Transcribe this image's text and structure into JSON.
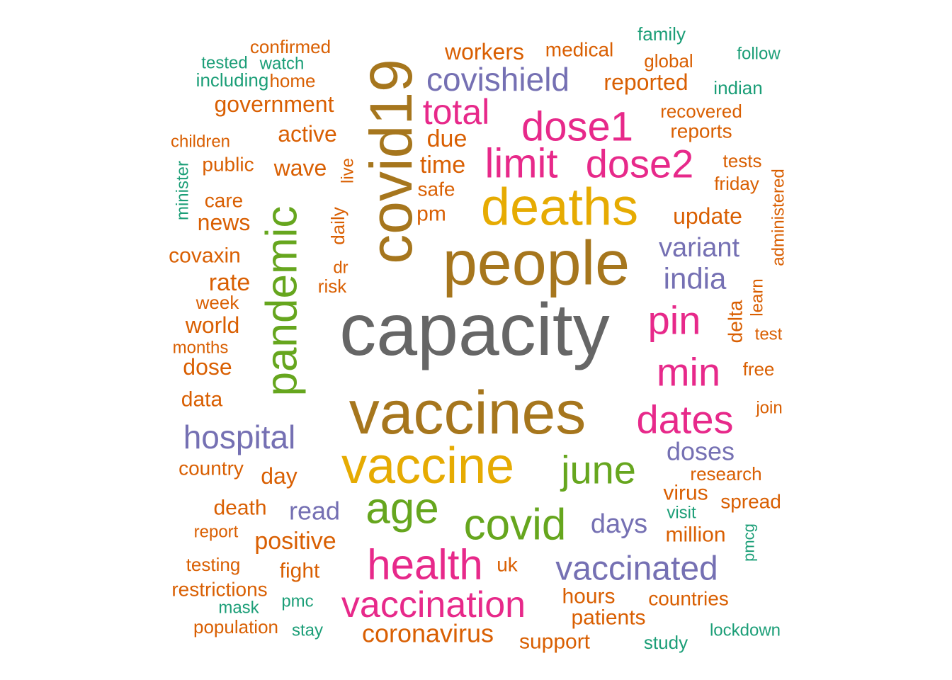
{
  "chart_data": {
    "type": "wordcloud",
    "colors": {
      "gray": "#666666",
      "brown": "#A6761D",
      "gold": "#E6AB02",
      "pink": "#E7298A",
      "purple": "#7570B3",
      "green": "#66A61E",
      "orange": "#D95F02",
      "teal": "#1B9E77"
    },
    "words": [
      {
        "text": "capacity",
        "color": "gray"
      },
      {
        "text": "vaccines",
        "color": "brown"
      },
      {
        "text": "people",
        "color": "brown"
      },
      {
        "text": "covid19",
        "color": "brown"
      },
      {
        "text": "vaccine",
        "color": "gold"
      },
      {
        "text": "deaths",
        "color": "gold"
      },
      {
        "text": "pandemic",
        "color": "green"
      },
      {
        "text": "age",
        "color": "green"
      },
      {
        "text": "covid",
        "color": "green"
      },
      {
        "text": "june",
        "color": "green"
      },
      {
        "text": "health",
        "color": "pink"
      },
      {
        "text": "vaccination",
        "color": "pink"
      },
      {
        "text": "dose1",
        "color": "pink"
      },
      {
        "text": "dose2",
        "color": "pink"
      },
      {
        "text": "limit",
        "color": "pink"
      },
      {
        "text": "total",
        "color": "pink"
      },
      {
        "text": "pin",
        "color": "pink"
      },
      {
        "text": "min",
        "color": "pink"
      },
      {
        "text": "dates",
        "color": "pink"
      },
      {
        "text": "covishield",
        "color": "purple"
      },
      {
        "text": "vaccinated",
        "color": "purple"
      },
      {
        "text": "hospital",
        "color": "purple"
      },
      {
        "text": "india",
        "color": "purple"
      },
      {
        "text": "variant",
        "color": "purple"
      },
      {
        "text": "doses",
        "color": "purple"
      },
      {
        "text": "read",
        "color": "purple"
      },
      {
        "text": "days",
        "color": "purple"
      },
      {
        "text": "coronavirus",
        "color": "orange"
      },
      {
        "text": "positive",
        "color": "orange"
      },
      {
        "text": "government",
        "color": "orange"
      },
      {
        "text": "workers",
        "color": "orange"
      },
      {
        "text": "medical",
        "color": "orange"
      },
      {
        "text": "reported",
        "color": "orange"
      },
      {
        "text": "active",
        "color": "orange"
      },
      {
        "text": "wave",
        "color": "orange"
      },
      {
        "text": "due",
        "color": "orange"
      },
      {
        "text": "time",
        "color": "orange"
      },
      {
        "text": "safe",
        "color": "orange"
      },
      {
        "text": "pm",
        "color": "orange"
      },
      {
        "text": "update",
        "color": "orange"
      },
      {
        "text": "news",
        "color": "orange"
      },
      {
        "text": "care",
        "color": "orange"
      },
      {
        "text": "public",
        "color": "orange"
      },
      {
        "text": "rate",
        "color": "orange"
      },
      {
        "text": "covaxin",
        "color": "orange"
      },
      {
        "text": "world",
        "color": "orange"
      },
      {
        "text": "dose",
        "color": "orange"
      },
      {
        "text": "data",
        "color": "orange"
      },
      {
        "text": "country",
        "color": "orange"
      },
      {
        "text": "day",
        "color": "orange"
      },
      {
        "text": "death",
        "color": "orange"
      },
      {
        "text": "virus",
        "color": "orange"
      },
      {
        "text": "million",
        "color": "orange"
      },
      {
        "text": "spread",
        "color": "orange"
      },
      {
        "text": "hours",
        "color": "orange"
      },
      {
        "text": "patients",
        "color": "orange"
      },
      {
        "text": "countries",
        "color": "orange"
      },
      {
        "text": "support",
        "color": "orange"
      },
      {
        "text": "fight",
        "color": "orange"
      },
      {
        "text": "uk",
        "color": "orange"
      },
      {
        "text": "confirmed",
        "color": "orange"
      },
      {
        "text": "home",
        "color": "orange"
      },
      {
        "text": "global",
        "color": "orange"
      },
      {
        "text": "recovered",
        "color": "orange"
      },
      {
        "text": "reports",
        "color": "orange"
      },
      {
        "text": "tests",
        "color": "orange"
      },
      {
        "text": "friday",
        "color": "orange"
      },
      {
        "text": "children",
        "color": "orange"
      },
      {
        "text": "daily",
        "color": "orange"
      },
      {
        "text": "live",
        "color": "orange"
      },
      {
        "text": "dr",
        "color": "orange"
      },
      {
        "text": "risk",
        "color": "orange"
      },
      {
        "text": "week",
        "color": "orange"
      },
      {
        "text": "months",
        "color": "orange"
      },
      {
        "text": "delta",
        "color": "orange"
      },
      {
        "text": "learn",
        "color": "orange"
      },
      {
        "text": "test",
        "color": "orange"
      },
      {
        "text": "free",
        "color": "orange"
      },
      {
        "text": "join",
        "color": "orange"
      },
      {
        "text": "research",
        "color": "orange"
      },
      {
        "text": "administered",
        "color": "orange"
      },
      {
        "text": "report",
        "color": "orange"
      },
      {
        "text": "testing",
        "color": "orange"
      },
      {
        "text": "restrictions",
        "color": "orange"
      },
      {
        "text": "population",
        "color": "orange"
      },
      {
        "text": "tested",
        "color": "teal"
      },
      {
        "text": "watch",
        "color": "teal"
      },
      {
        "text": "including",
        "color": "teal"
      },
      {
        "text": "family",
        "color": "teal"
      },
      {
        "text": "follow",
        "color": "teal"
      },
      {
        "text": "indian",
        "color": "teal"
      },
      {
        "text": "minister",
        "color": "teal"
      },
      {
        "text": "visit",
        "color": "teal"
      },
      {
        "text": "pmcg",
        "color": "teal"
      },
      {
        "text": "mask",
        "color": "teal"
      },
      {
        "text": "pmc",
        "color": "teal"
      },
      {
        "text": "stay",
        "color": "teal"
      },
      {
        "text": "study",
        "color": "teal"
      },
      {
        "text": "lockdown",
        "color": "teal"
      }
    ]
  }
}
